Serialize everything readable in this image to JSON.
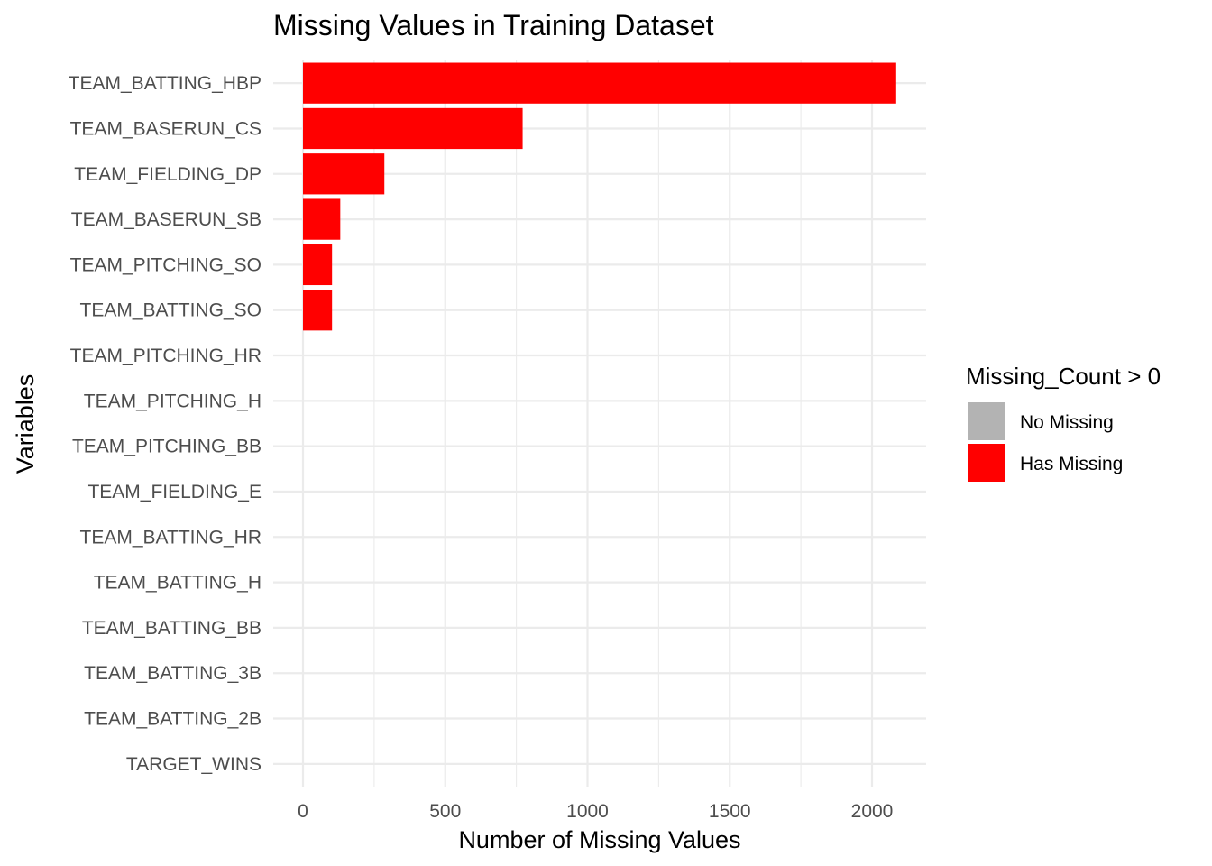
{
  "chart_data": {
    "type": "bar",
    "orientation": "horizontal",
    "title": "Missing Values in Training Dataset",
    "xlabel": "Number of Missing Values",
    "ylabel": "Variables",
    "xlim": [
      0,
      2200
    ],
    "x_ticks": [
      0,
      500,
      1000,
      1500,
      2000
    ],
    "grid": true,
    "categories": [
      "TEAM_BATTING_HBP",
      "TEAM_BASERUN_CS",
      "TEAM_FIELDING_DP",
      "TEAM_BASERUN_SB",
      "TEAM_PITCHING_SO",
      "TEAM_BATTING_SO",
      "TEAM_PITCHING_HR",
      "TEAM_PITCHING_H",
      "TEAM_PITCHING_BB",
      "TEAM_FIELDING_E",
      "TEAM_BATTING_HR",
      "TEAM_BATTING_H",
      "TEAM_BATTING_BB",
      "TEAM_BATTING_3B",
      "TEAM_BATTING_2B",
      "TARGET_WINS"
    ],
    "values": [
      2085,
      772,
      286,
      131,
      102,
      102,
      0,
      0,
      0,
      0,
      0,
      0,
      0,
      0,
      0,
      0
    ],
    "legend": {
      "title": "Missing_Count > 0",
      "placement": "right",
      "entries": [
        {
          "label": "No Missing",
          "color": "#b3b3b3"
        },
        {
          "label": "Has Missing",
          "color": "#ff0000"
        }
      ]
    }
  }
}
